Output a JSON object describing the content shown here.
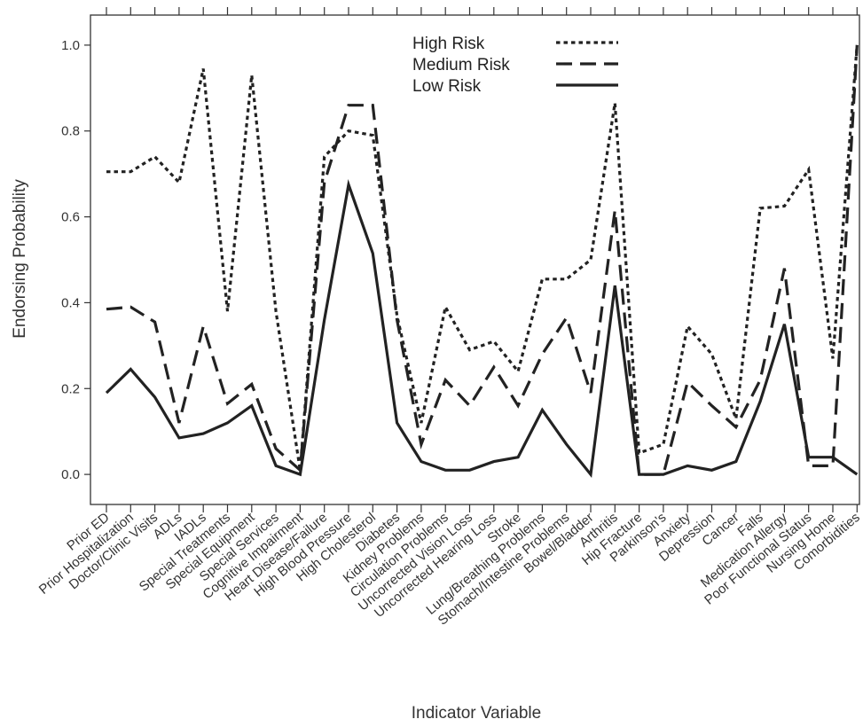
{
  "chart_data": {
    "type": "line",
    "xlabel": "Indicator Variable",
    "ylabel": "Endorsing Probability",
    "ylim": [
      -0.07,
      1.07
    ],
    "yticks": [
      "0.0",
      "0.2",
      "0.4",
      "0.6",
      "0.8",
      "1.0"
    ],
    "grid": false,
    "legend_position": "top-center",
    "categories": [
      "Prior ED",
      "Prior Hospitalization",
      "Doctor/Clinic Visits",
      "ADLs",
      "IADLs",
      "Special Treatments",
      "Special Equipment",
      "Special Services",
      "Cognitive Impairment",
      "Heart Disease/Failure",
      "High Blood Pressure",
      "High Cholesterol",
      "Diabetes",
      "Kidney Problems",
      "Circulation Problems",
      "Uncorrected Vision Loss",
      "Uncorrected Hearing Loss",
      "Stroke",
      "Lung/Breathing Problems",
      "Stomach/Intestine Problems",
      "Bowel/Bladder",
      "Arthritis",
      "Hip Fracture",
      "Parkinson's",
      "Anxiety",
      "Depression",
      "Cancer",
      "Falls",
      "Medication Allergy",
      "Poor Functional Status",
      "Nursing Home",
      "Comorbidities"
    ],
    "series": [
      {
        "name": "High Risk",
        "style": "dotted",
        "values": [
          0.705,
          0.705,
          0.74,
          0.68,
          0.945,
          0.38,
          0.93,
          0.38,
          0.01,
          0.74,
          0.8,
          0.79,
          0.37,
          0.12,
          0.39,
          0.29,
          0.31,
          0.24,
          0.455,
          0.455,
          0.5,
          0.865,
          0.05,
          0.07,
          0.345,
          0.28,
          0.13,
          0.62,
          0.625,
          0.71,
          0.27,
          1.0
        ]
      },
      {
        "name": "Medium Risk",
        "style": "dashed",
        "values": [
          0.385,
          0.39,
          0.355,
          0.12,
          0.345,
          0.165,
          0.21,
          0.06,
          0.01,
          0.68,
          0.86,
          0.86,
          0.36,
          0.07,
          0.22,
          0.16,
          0.25,
          0.16,
          0.28,
          0.365,
          0.19,
          0.615,
          0.0,
          0.0,
          0.215,
          0.16,
          0.11,
          0.22,
          0.48,
          0.02,
          0.02,
          1.0
        ]
      },
      {
        "name": "Low Risk",
        "style": "solid",
        "values": [
          0.19,
          0.245,
          0.18,
          0.085,
          0.095,
          0.12,
          0.16,
          0.02,
          0.0,
          0.36,
          0.675,
          0.515,
          0.12,
          0.03,
          0.01,
          0.01,
          0.03,
          0.04,
          0.15,
          0.07,
          0.0,
          0.44,
          0.0,
          0.0,
          0.02,
          0.01,
          0.03,
          0.17,
          0.35,
          0.04,
          0.04,
          0.0
        ]
      }
    ]
  }
}
